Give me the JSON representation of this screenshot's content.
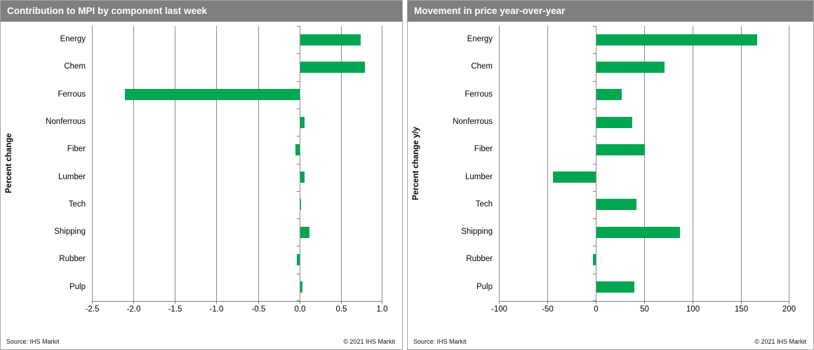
{
  "page": {
    "background": "#ffffff"
  },
  "colors": {
    "header_bg": "#7f7f7f",
    "header_text": "#ffffff",
    "bar_green": "#00A651",
    "gridline": "#8c8c8c",
    "axis": "#7f7f7f",
    "panel_border": "#a6a6a6"
  },
  "charts": [
    {
      "title": "Contribution to MPI by component last week",
      "ylabel": "Percent change",
      "footer": {
        "source": "Source: IHS Markit",
        "copyright": "© 2021 IHS Markit"
      },
      "chart_data": {
        "type": "bar",
        "orientation": "horizontal",
        "title": "Contribution to MPI by component last week",
        "xlabel": "",
        "ylabel": "Percent change",
        "categories": [
          "Energy",
          "Chem",
          "Ferrous",
          "Nonferrous",
          "Fiber",
          "Lumber",
          "Tech",
          "Shipping",
          "Rubber",
          "Pulp"
        ],
        "values": [
          0.73,
          0.78,
          -2.1,
          0.05,
          -0.05,
          0.05,
          0.01,
          0.11,
          -0.03,
          0.03
        ],
        "xlim": [
          -2.5,
          1.0
        ],
        "xticks": [
          -2.5,
          -2.0,
          -1.5,
          -1.0,
          -0.5,
          0.0,
          0.5,
          1.0
        ],
        "xtick_labels": [
          "-2.5",
          "-2.0",
          "-1.5",
          "-1.0",
          "-0.5",
          "0.0",
          "0.5",
          "1.0"
        ],
        "bar_color": "#00A651",
        "grid": true,
        "legend": false
      }
    },
    {
      "title": "Movement in price year-over-year",
      "ylabel": "Percent change y/y",
      "footer": {
        "source": "Source: IHS Markit",
        "copyright": "© 2021 IHS Markit"
      },
      "chart_data": {
        "type": "bar",
        "orientation": "horizontal",
        "title": "Movement in price year-over-year",
        "xlabel": "",
        "ylabel": "Percent change y/y",
        "categories": [
          "Energy",
          "Chem",
          "Ferrous",
          "Nonferrous",
          "Fiber",
          "Lumber",
          "Tech",
          "Shipping",
          "Rubber",
          "Pulp"
        ],
        "values": [
          166,
          70,
          26,
          37,
          50,
          -44,
          41,
          86,
          -3,
          39
        ],
        "xlim": [
          -100,
          200
        ],
        "xticks": [
          -100,
          -50,
          0,
          50,
          100,
          150,
          200
        ],
        "xtick_labels": [
          "-100",
          "-50",
          "0",
          "50",
          "100",
          "150",
          "200"
        ],
        "bar_color": "#00A651",
        "grid": true,
        "legend": false
      }
    }
  ]
}
